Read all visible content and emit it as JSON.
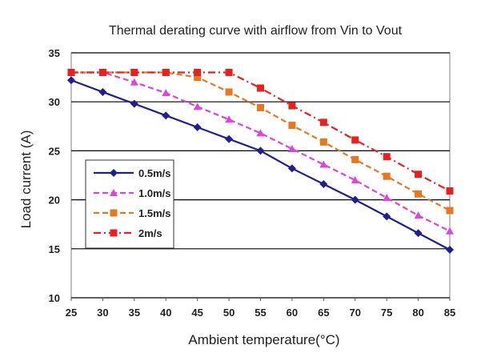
{
  "chart_data": {
    "type": "line",
    "title": "Thermal derating curve with airflow from Vin to Vout",
    "xlabel": "Ambient temperature(°C)",
    "ylabel": "Load current (A)",
    "x": [
      25,
      30,
      35,
      40,
      45,
      50,
      55,
      60,
      65,
      70,
      75,
      80,
      85
    ],
    "x_tick_labels": [
      "25",
      "30",
      "35",
      "40",
      "45",
      "50",
      "55",
      "60",
      "65",
      "70",
      "75",
      "80",
      "85"
    ],
    "ylim": [
      10,
      35
    ],
    "y_ticks": [
      10,
      15,
      20,
      25,
      30,
      35
    ],
    "y_tick_labels": [
      "10",
      "15",
      "20",
      "25",
      "30",
      "35"
    ],
    "grid": "horizontal",
    "legend_position": "left",
    "series": [
      {
        "name": "0.5m/s",
        "color": "#1f1f8f",
        "marker": "diamond",
        "line_style": "solid",
        "values": [
          32.2,
          31.0,
          29.8,
          28.6,
          27.4,
          26.2,
          25.0,
          23.2,
          21.6,
          20.0,
          18.3,
          16.6,
          14.9
        ]
      },
      {
        "name": "1.0m/s",
        "color": "#dd44dd",
        "marker": "triangle",
        "line_style": "dashed",
        "values": [
          33.0,
          33.0,
          32.0,
          30.9,
          29.5,
          28.2,
          26.8,
          25.2,
          23.6,
          22.0,
          20.2,
          18.4,
          16.8
        ]
      },
      {
        "name": "1.5m/s",
        "color": "#e87722",
        "marker": "square",
        "line_style": "dashed",
        "values": [
          33.0,
          33.0,
          33.0,
          33.0,
          32.5,
          31.0,
          29.4,
          27.6,
          25.9,
          24.1,
          22.4,
          20.6,
          18.9
        ]
      },
      {
        "name": "2m/s",
        "color": "#e82020",
        "marker": "square",
        "line_style": "dashdot",
        "values": [
          33.0,
          33.0,
          33.0,
          33.0,
          33.0,
          33.0,
          31.4,
          29.6,
          27.9,
          26.1,
          24.4,
          22.6,
          20.9
        ]
      }
    ]
  }
}
